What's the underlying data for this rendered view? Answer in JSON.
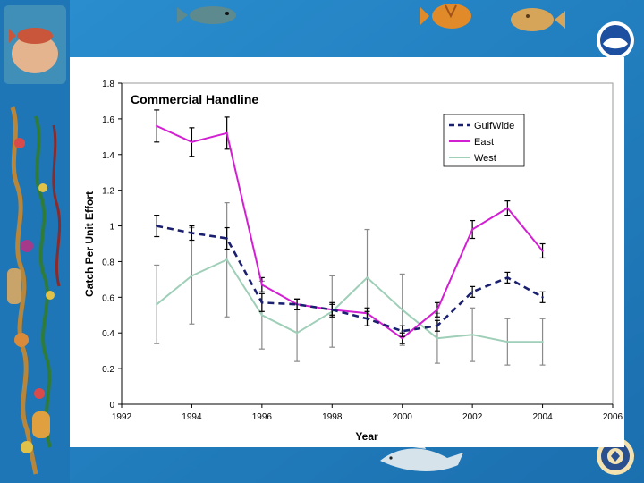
{
  "chart_data": {
    "type": "line",
    "title": "Commercial Handline",
    "xlabel": "Year",
    "ylabel": "Catch Per Unit Effort",
    "xlim": [
      1992,
      2006
    ],
    "ylim": [
      0,
      1.8
    ],
    "x_ticks": [
      "1992",
      "1994",
      "1996",
      "1998",
      "2000",
      "2002",
      "2004",
      "2006"
    ],
    "y_ticks": [
      "0",
      "0.2",
      "0.4",
      "0.6",
      "0.8",
      "1",
      "1.2",
      "1.4",
      "1.6",
      "1.8"
    ],
    "legend_position": "top-right",
    "grid": false,
    "series": [
      {
        "name": "GulfWide",
        "color": "#1a1f6e",
        "style": "dashed",
        "x": [
          1993,
          1994,
          1995,
          1996,
          1997,
          1998,
          1999,
          2000,
          2001,
          2002,
          2003,
          2004
        ],
        "values": [
          1.0,
          0.96,
          0.93,
          0.57,
          0.56,
          0.53,
          0.48,
          0.41,
          0.44,
          0.63,
          0.71,
          0.6
        ],
        "err": [
          0.06,
          0.04,
          0.06,
          0.05,
          0.03,
          0.04,
          0.04,
          0.03,
          0.03,
          0.03,
          0.03,
          0.03
        ]
      },
      {
        "name": "East",
        "color": "#d21fd2",
        "style": "solid",
        "x": [
          1993,
          1994,
          1995,
          1996,
          1997,
          1998,
          1999,
          2000,
          2001,
          2002,
          2003,
          2004
        ],
        "values": [
          1.56,
          1.47,
          1.52,
          0.67,
          0.56,
          0.53,
          0.51,
          0.37,
          0.53,
          0.98,
          1.1,
          0.86
        ],
        "err": [
          0.09,
          0.08,
          0.09,
          0.04,
          0.03,
          0.03,
          0.03,
          0.03,
          0.04,
          0.05,
          0.04,
          0.04
        ]
      },
      {
        "name": "West",
        "color": "#9fcfb8",
        "style": "solid",
        "x": [
          1993,
          1994,
          1995,
          1996,
          1997,
          1998,
          1999,
          2000,
          2001,
          2002,
          2003,
          2004
        ],
        "values": [
          0.56,
          0.72,
          0.81,
          0.5,
          0.4,
          0.52,
          0.71,
          0.53,
          0.37,
          0.39,
          0.35,
          0.35
        ],
        "err": [
          0.22,
          0.27,
          0.32,
          0.19,
          0.16,
          0.2,
          0.27,
          0.2,
          0.14,
          0.15,
          0.13,
          0.13
        ]
      }
    ]
  }
}
